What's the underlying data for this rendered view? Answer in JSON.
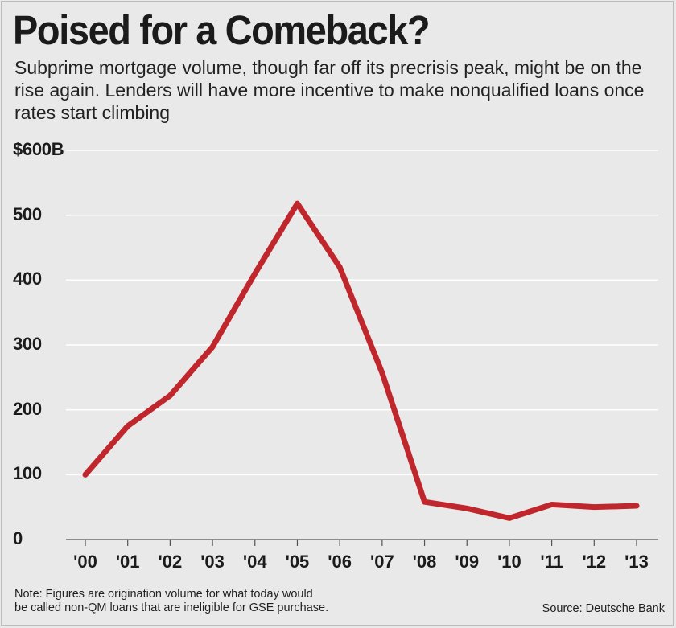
{
  "header": {
    "title": "Poised for a Comeback?",
    "subtitle": "Subprime mortgage volume, though far off its precrisis peak, might be on the rise again. Lenders will have more incentive to make nonqualified loans once rates start climbing"
  },
  "footer": {
    "note_line1": "Note: Figures are origination volume for what today would",
    "note_line2": "be called non-QM loans that are ineligible for GSE purchase.",
    "source": "Source: Deutsche Bank"
  },
  "colors": {
    "line": "#c0272d",
    "grid": "#ffffff",
    "background": "#e9e9ea"
  },
  "chart_data": {
    "type": "line",
    "title": "Poised for a Comeback?",
    "xlabel": "",
    "ylabel": "",
    "categories": [
      "'00",
      "'01",
      "'02",
      "'03",
      "'04",
      "'05",
      "'06",
      "'07",
      "'08",
      "'09",
      "'10",
      "'11",
      "'12",
      "'13"
    ],
    "series": [
      {
        "name": "Subprime mortgage volume ($B)",
        "values": [
          100,
          175,
          222,
          297,
          410,
          518,
          420,
          257,
          58,
          48,
          33,
          54,
          50,
          52
        ]
      }
    ],
    "ylim": [
      0,
      600
    ],
    "yticks": [
      0,
      100,
      200,
      300,
      400,
      500,
      600
    ],
    "ytick_labels": [
      "0",
      "100",
      "200",
      "300",
      "400",
      "500",
      "$600B"
    ],
    "grid": true
  }
}
